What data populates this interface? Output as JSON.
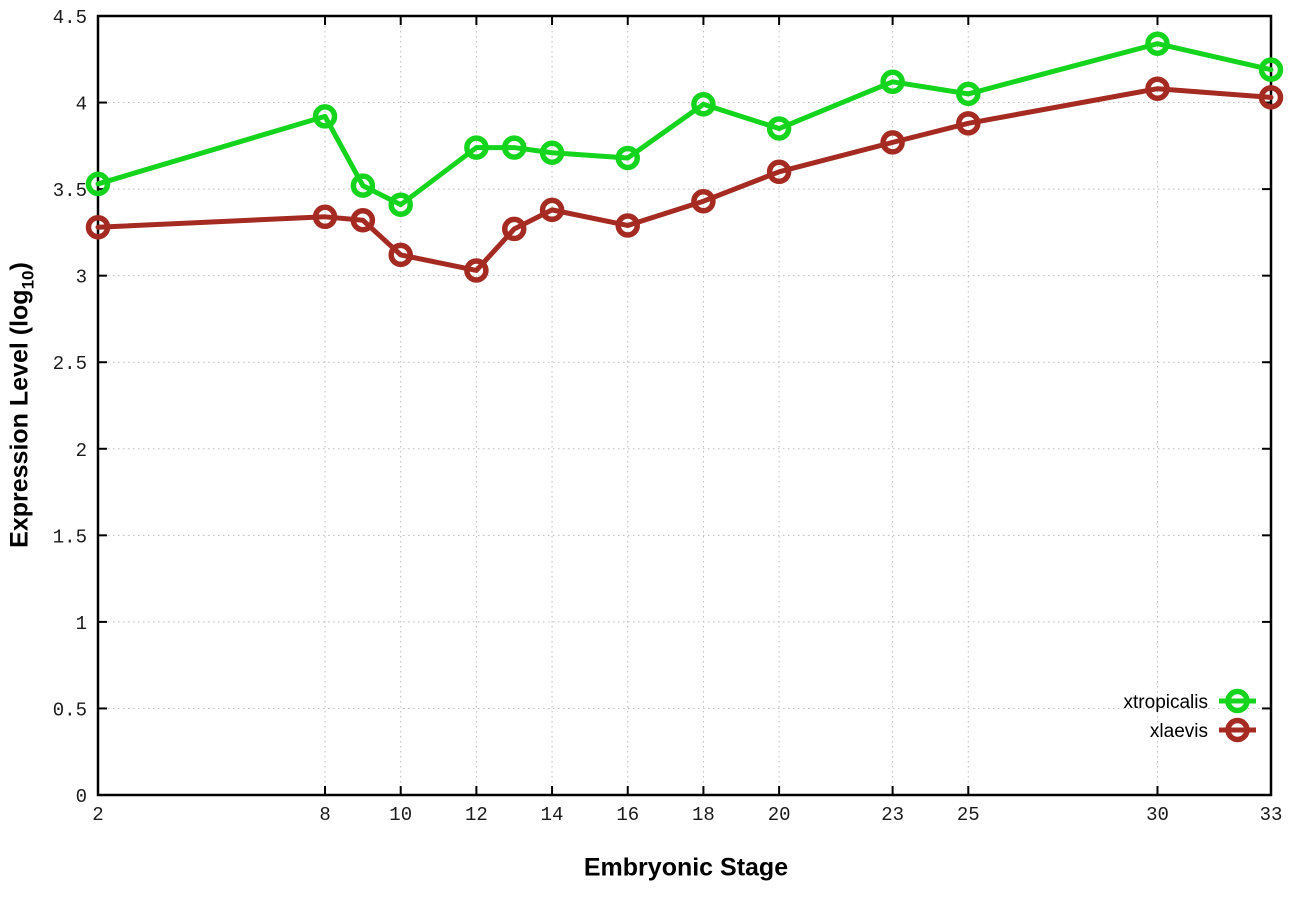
{
  "chart_data": {
    "type": "line",
    "x": [
      2,
      8,
      9,
      10,
      12,
      13,
      14,
      16,
      18,
      20,
      23,
      25,
      30,
      33
    ],
    "series": [
      {
        "name": "xtropicalis",
        "color": "#14d41e",
        "values": [
          3.53,
          3.92,
          3.52,
          3.41,
          3.74,
          3.74,
          3.71,
          3.68,
          3.99,
          3.85,
          4.12,
          4.05,
          4.34,
          4.19
        ]
      },
      {
        "name": "xlaevis",
        "color": "#a52a21",
        "values": [
          3.28,
          3.34,
          3.32,
          3.12,
          3.03,
          3.27,
          3.38,
          3.29,
          3.43,
          3.6,
          3.77,
          3.88,
          4.08,
          4.03
        ]
      }
    ],
    "xlabel": "Embryonic Stage",
    "ylabel_prefix": "Expression Level (log",
    "ylabel_sub": "10",
    "ylabel_suffix": ")",
    "xlim": [
      2,
      33
    ],
    "ylim": [
      0,
      4.5
    ],
    "xticks": {
      "values": [
        2,
        8,
        10,
        12,
        14,
        16,
        18,
        20,
        23,
        25,
        30,
        33
      ],
      "labels": [
        "2",
        "8",
        "10",
        "12",
        "14",
        "16",
        "18",
        "20",
        "23",
        "25",
        "30",
        "33"
      ]
    },
    "yticks": {
      "values": [
        0,
        0.5,
        1,
        1.5,
        2,
        2.5,
        3,
        3.5,
        4,
        4.5
      ],
      "labels": [
        "0",
        "0.5",
        "1",
        "1.5",
        "2",
        "2.5",
        "3",
        "3.5",
        "4",
        "4.5"
      ]
    },
    "grid": true,
    "legend_position": "inside-bottom-right",
    "marker": "open-circle",
    "axis_color": "#000000",
    "grid_color": "#bdbdbd",
    "tick_label_color": "#1a1a1a"
  }
}
